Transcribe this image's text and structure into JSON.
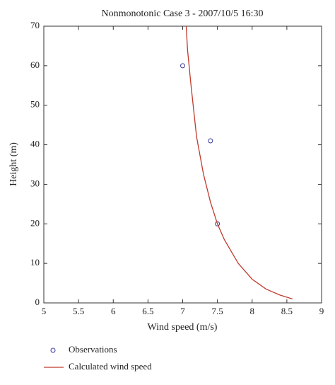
{
  "chart_data": {
    "type": "line",
    "title": "Nonmonotonic Case 3 - 2007/10/5 16:30",
    "xlabel": "Wind speed (m/s)",
    "ylabel": "Height (m)",
    "xlim": [
      5,
      9
    ],
    "xticks": [
      5,
      5.5,
      6,
      6.5,
      7,
      7.5,
      8,
      8.5,
      9
    ],
    "ylim": [
      0,
      70
    ],
    "yticks": [
      0,
      10,
      20,
      30,
      40,
      50,
      60,
      70
    ],
    "legend": "bottom",
    "series": [
      {
        "name": "Observations",
        "type": "scatter",
        "color": "#3a3aa0",
        "x": [
          7,
          7.4,
          7.5
        ],
        "values": [
          60,
          41,
          20
        ]
      },
      {
        "name": "Calculated wind speed",
        "type": "line",
        "color": "#c0392b",
        "x": [
          8.58,
          8.4,
          8.2,
          8.0,
          7.8,
          7.6,
          7.5,
          7.4,
          7.3,
          7.2,
          7.12,
          7.07,
          7.05
        ],
        "values": [
          1,
          2,
          3.5,
          6,
          10,
          16,
          20,
          25.5,
          32.5,
          42,
          55,
          64,
          70
        ]
      }
    ]
  }
}
